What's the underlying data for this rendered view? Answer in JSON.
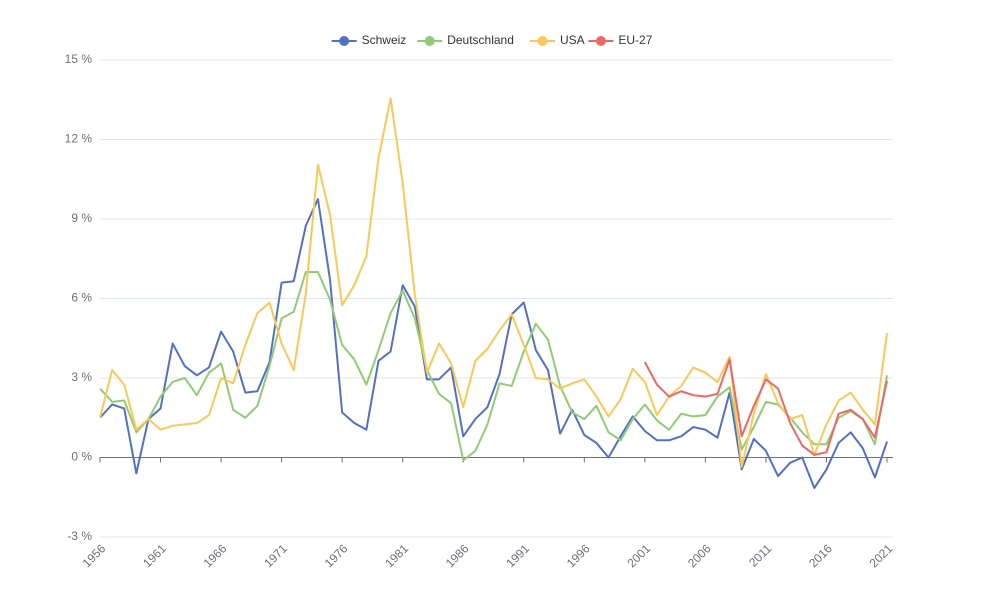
{
  "chart_data": {
    "type": "line",
    "x": [
      1956,
      1957,
      1958,
      1959,
      1960,
      1961,
      1962,
      1963,
      1964,
      1965,
      1966,
      1967,
      1968,
      1969,
      1970,
      1971,
      1972,
      1973,
      1974,
      1975,
      1976,
      1977,
      1978,
      1979,
      1980,
      1981,
      1982,
      1983,
      1984,
      1985,
      1986,
      1987,
      1988,
      1989,
      1990,
      1991,
      1992,
      1993,
      1994,
      1995,
      1996,
      1997,
      1998,
      1999,
      2000,
      2001,
      2002,
      2003,
      2004,
      2005,
      2006,
      2007,
      2008,
      2009,
      2010,
      2011,
      2012,
      2013,
      2014,
      2015,
      2016,
      2017,
      2018,
      2019,
      2020,
      2021
    ],
    "series": [
      {
        "name": "Schweiz",
        "color": "#5470c6",
        "values": [
          1.5,
          2.0,
          1.85,
          -0.6,
          1.45,
          1.85,
          4.3,
          3.45,
          3.1,
          3.4,
          4.75,
          4.0,
          2.45,
          2.5,
          3.6,
          6.6,
          6.65,
          8.75,
          9.75,
          6.7,
          1.7,
          1.3,
          1.05,
          3.65,
          4.0,
          6.5,
          5.7,
          2.95,
          2.95,
          3.4,
          0.8,
          1.45,
          1.9,
          3.15,
          5.4,
          5.85,
          4.05,
          3.3,
          0.9,
          1.8,
          0.85,
          0.55,
          0.0,
          0.8,
          1.55,
          1.0,
          0.65,
          0.65,
          0.8,
          1.15,
          1.05,
          0.75,
          2.45,
          -0.45,
          0.7,
          0.25,
          -0.7,
          -0.2,
          0.0,
          -1.15,
          -0.45,
          0.55,
          0.95,
          0.35,
          -0.75,
          0.6
        ]
      },
      {
        "name": "Deutschland",
        "color": "#91cc75",
        "values": [
          2.6,
          2.1,
          2.15,
          0.95,
          1.45,
          2.3,
          2.85,
          3.0,
          2.35,
          3.2,
          3.55,
          1.8,
          1.5,
          1.95,
          3.45,
          5.25,
          5.5,
          7.0,
          7.0,
          5.95,
          4.25,
          3.7,
          2.75,
          4.05,
          5.45,
          6.3,
          5.25,
          3.3,
          2.4,
          2.05,
          -0.1,
          0.25,
          1.25,
          2.8,
          2.7,
          4.0,
          5.05,
          4.45,
          2.7,
          1.7,
          1.45,
          1.95,
          0.95,
          0.65,
          1.45,
          2.0,
          1.4,
          1.05,
          1.65,
          1.55,
          1.6,
          2.3,
          2.65,
          0.3,
          1.15,
          2.1,
          2.0,
          1.5,
          0.95,
          0.5,
          0.5,
          1.5,
          1.75,
          1.45,
          0.5,
          3.1
        ]
      },
      {
        "name": "USA",
        "color": "#fac858",
        "values": [
          1.5,
          3.3,
          2.75,
          1.05,
          1.45,
          1.05,
          1.2,
          1.25,
          1.3,
          1.6,
          3.0,
          2.8,
          4.25,
          5.45,
          5.85,
          4.3,
          3.3,
          6.2,
          11.05,
          9.15,
          5.75,
          6.5,
          7.6,
          11.3,
          13.55,
          10.35,
          6.15,
          3.2,
          4.3,
          3.55,
          1.9,
          3.65,
          4.1,
          4.8,
          5.4,
          4.25,
          3.0,
          2.95,
          2.6,
          2.8,
          2.95,
          2.3,
          1.55,
          2.2,
          3.35,
          2.85,
          1.6,
          2.3,
          2.7,
          3.4,
          3.2,
          2.85,
          3.8,
          -0.35,
          1.65,
          3.15,
          2.05,
          1.45,
          1.6,
          0.1,
          1.25,
          2.15,
          2.45,
          1.8,
          1.25,
          4.7
        ]
      },
      {
        "name": "EU-27",
        "color": "#ee6666",
        "values": [
          null,
          null,
          null,
          null,
          null,
          null,
          null,
          null,
          null,
          null,
          null,
          null,
          null,
          null,
          null,
          null,
          null,
          null,
          null,
          null,
          null,
          null,
          null,
          null,
          null,
          null,
          null,
          null,
          null,
          null,
          null,
          null,
          null,
          null,
          null,
          null,
          null,
          null,
          null,
          null,
          null,
          null,
          null,
          null,
          null,
          3.6,
          2.75,
          2.3,
          2.5,
          2.35,
          2.3,
          2.4,
          3.7,
          0.8,
          1.95,
          2.95,
          2.6,
          1.3,
          0.45,
          0.1,
          0.2,
          1.65,
          1.8,
          1.45,
          0.75,
          2.9
        ]
      }
    ],
    "xlim": [
      1956,
      2021
    ],
    "xticks": [
      1956,
      1961,
      1966,
      1971,
      1976,
      1981,
      1986,
      1991,
      1996,
      2001,
      2006,
      2011,
      2016,
      2021
    ],
    "ylim": [
      -3,
      15
    ],
    "yticks": [
      {
        "value": -3,
        "label": "-3 %"
      },
      {
        "value": 0,
        "label": "0 %"
      },
      {
        "value": 3,
        "label": "3 %"
      },
      {
        "value": 6,
        "label": "6 %"
      },
      {
        "value": 9,
        "label": "9 %"
      },
      {
        "value": 12,
        "label": "12 %"
      },
      {
        "value": 15,
        "label": "15 %"
      }
    ],
    "grid": true,
    "legend": "top"
  }
}
